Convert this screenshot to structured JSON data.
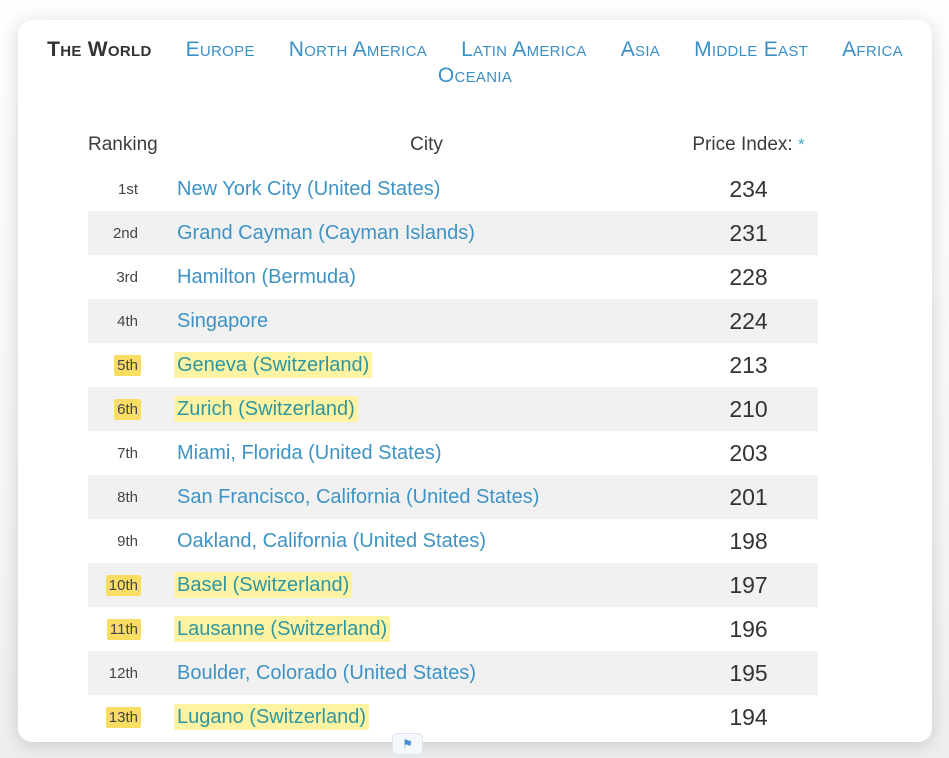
{
  "nav": {
    "tabs": [
      {
        "label": "The World",
        "active": true
      },
      {
        "label": "Europe",
        "active": false
      },
      {
        "label": "North America",
        "active": false
      },
      {
        "label": "Latin America",
        "active": false
      },
      {
        "label": "Asia",
        "active": false
      },
      {
        "label": "Middle East",
        "active": false
      },
      {
        "label": "Africa",
        "active": false
      },
      {
        "label": "Oceania",
        "active": false
      }
    ]
  },
  "table": {
    "headers": {
      "ranking": "Ranking",
      "city": "City",
      "price": "Price Index:",
      "price_note": "*"
    },
    "rows": [
      {
        "rank": "1st",
        "city": "New York City (United States)",
        "price": "234",
        "highlighted": false
      },
      {
        "rank": "2nd",
        "city": "Grand Cayman (Cayman Islands)",
        "price": "231",
        "highlighted": false
      },
      {
        "rank": "3rd",
        "city": "Hamilton (Bermuda)",
        "price": "228",
        "highlighted": false
      },
      {
        "rank": "4th",
        "city": "Singapore",
        "price": "224",
        "highlighted": false
      },
      {
        "rank": "5th",
        "city": "Geneva (Switzerland)",
        "price": "213",
        "highlighted": true
      },
      {
        "rank": "6th",
        "city": "Zurich (Switzerland)",
        "price": "210",
        "highlighted": true
      },
      {
        "rank": "7th",
        "city": "Miami, Florida (United States)",
        "price": "203",
        "highlighted": false
      },
      {
        "rank": "8th",
        "city": "San Francisco, California (United States)",
        "price": "201",
        "highlighted": false
      },
      {
        "rank": "9th",
        "city": "Oakland, California (United States)",
        "price": "198",
        "highlighted": false
      },
      {
        "rank": "10th",
        "city": "Basel (Switzerland)",
        "price": "197",
        "highlighted": true
      },
      {
        "rank": "11th",
        "city": "Lausanne (Switzerland)",
        "price": "196",
        "highlighted": true
      },
      {
        "rank": "12th",
        "city": "Boulder, Colorado (United States)",
        "price": "195",
        "highlighted": false
      },
      {
        "rank": "13th",
        "city": "Lugano (Switzerland)",
        "price": "194",
        "highlighted": true
      }
    ]
  },
  "badge": {
    "icon": "flag-icon",
    "glyph": "⚑"
  },
  "colors": {
    "tab_blue": "#3a8fc7",
    "link_blue": "#3e93c4",
    "highlighted_link_teal": "#2f96a0",
    "highlight_yellow": "#fdf3a2",
    "rank_highlight_gold": "#f8dd62",
    "stripe_gray": "#f1f1f2",
    "asterisk_blue": "#4aa8cc"
  }
}
